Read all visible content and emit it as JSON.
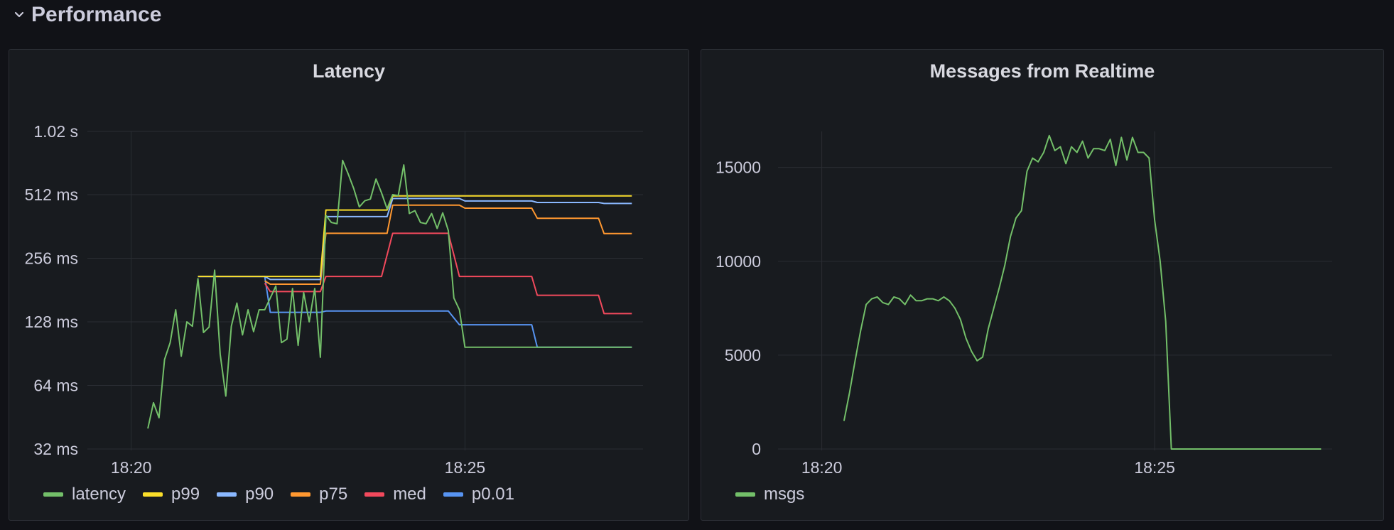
{
  "row": {
    "title": "Performance",
    "icon": "chevron-down-icon"
  },
  "chart_data": [
    {
      "type": "line",
      "title": "Latency",
      "yscale": "log2",
      "y_ticks": [
        {
          "value": 0.032,
          "label": "32 ms"
        },
        {
          "value": 0.064,
          "label": "64 ms"
        },
        {
          "value": 0.128,
          "label": "128 ms"
        },
        {
          "value": 0.256,
          "label": "256 ms"
        },
        {
          "value": 0.512,
          "label": "512 ms"
        },
        {
          "value": 1.02,
          "label": "1.02 s"
        }
      ],
      "x_ticks": [
        {
          "value": "18:20",
          "label": "18:20"
        },
        {
          "value": "18:25",
          "label": "18:25"
        }
      ],
      "x_range": [
        "18:19:50",
        "18:27:40"
      ],
      "grid": true,
      "legend": "bottom",
      "series": [
        {
          "name": "latency",
          "color": "#73bf69",
          "points": [
            [
              "18:20:15",
              0.04
            ],
            [
              "18:20:20",
              0.053
            ],
            [
              "18:20:25",
              0.045
            ],
            [
              "18:20:30",
              0.085
            ],
            [
              "18:20:35",
              0.102
            ],
            [
              "18:20:40",
              0.146
            ],
            [
              "18:20:45",
              0.088
            ],
            [
              "18:20:50",
              0.128
            ],
            [
              "18:20:55",
              0.122
            ],
            [
              "18:21:00",
              0.205
            ],
            [
              "18:21:05",
              0.114
            ],
            [
              "18:21:10",
              0.121
            ],
            [
              "18:21:15",
              0.225
            ],
            [
              "18:21:20",
              0.09
            ],
            [
              "18:21:25",
              0.057
            ],
            [
              "18:21:30",
              0.122
            ],
            [
              "18:21:35",
              0.157
            ],
            [
              "18:21:40",
              0.111
            ],
            [
              "18:21:45",
              0.146
            ],
            [
              "18:21:50",
              0.115
            ],
            [
              "18:21:55",
              0.146
            ],
            [
              "18:22:00",
              0.146
            ],
            [
              "18:22:05",
              0.166
            ],
            [
              "18:22:10",
              0.189
            ],
            [
              "18:22:15",
              0.102
            ],
            [
              "18:22:20",
              0.106
            ],
            [
              "18:22:25",
              0.184
            ],
            [
              "18:22:30",
              0.099
            ],
            [
              "18:22:35",
              0.176
            ],
            [
              "18:22:40",
              0.128
            ],
            [
              "18:22:45",
              0.184
            ],
            [
              "18:22:50",
              0.087
            ],
            [
              "18:22:55",
              0.408
            ],
            [
              "18:23:00",
              0.378
            ],
            [
              "18:23:05",
              0.373
            ],
            [
              "18:23:10",
              0.744
            ],
            [
              "18:23:15",
              0.643
            ],
            [
              "18:23:20",
              0.547
            ],
            [
              "18:23:25",
              0.448
            ],
            [
              "18:23:30",
              0.479
            ],
            [
              "18:23:35",
              0.488
            ],
            [
              "18:23:40",
              0.607
            ],
            [
              "18:23:45",
              0.522
            ],
            [
              "18:23:50",
              0.439
            ],
            [
              "18:23:55",
              0.512
            ],
            [
              "18:24:00",
              0.507
            ],
            [
              "18:24:05",
              0.708
            ],
            [
              "18:24:10",
              0.417
            ],
            [
              "18:24:15",
              0.43
            ],
            [
              "18:24:20",
              0.378
            ],
            [
              "18:24:25",
              0.373
            ],
            [
              "18:24:30",
              0.417
            ],
            [
              "18:24:35",
              0.354
            ],
            [
              "18:24:40",
              0.42
            ],
            [
              "18:24:45",
              0.346
            ],
            [
              "18:24:50",
              0.166
            ],
            [
              "18:24:55",
              0.146
            ],
            [
              "18:25:00",
              0.097
            ],
            [
              "18:27:30",
              0.097
            ]
          ]
        },
        {
          "name": "p99",
          "color": "#fade2a",
          "points": [
            [
              "18:21:00",
              0.21
            ],
            [
              "18:22:00",
              0.21
            ],
            [
              "18:22:50",
              0.21
            ],
            [
              "18:22:55",
              0.433
            ],
            [
              "18:23:50",
              0.433
            ],
            [
              "18:23:55",
              0.505
            ],
            [
              "18:27:30",
              0.505
            ]
          ]
        },
        {
          "name": "p90",
          "color": "#8ab8ff",
          "points": [
            [
              "18:21:00",
              0.21
            ],
            [
              "18:22:00",
              0.21
            ],
            [
              "18:22:05",
              0.203
            ],
            [
              "18:22:50",
              0.203
            ],
            [
              "18:22:55",
              0.403
            ],
            [
              "18:23:50",
              0.403
            ],
            [
              "18:23:55",
              0.491
            ],
            [
              "18:24:55",
              0.491
            ],
            [
              "18:25:00",
              0.478
            ],
            [
              "18:26:00",
              0.478
            ],
            [
              "18:26:05",
              0.47
            ],
            [
              "18:27:00",
              0.47
            ],
            [
              "18:27:05",
              0.465
            ],
            [
              "18:27:30",
              0.465
            ]
          ]
        },
        {
          "name": "p75",
          "color": "#ff9830",
          "points": [
            [
              "18:22:00",
              0.2
            ],
            [
              "18:22:05",
              0.193
            ],
            [
              "18:22:50",
              0.193
            ],
            [
              "18:22:55",
              0.336
            ],
            [
              "18:23:50",
              0.336
            ],
            [
              "18:23:55",
              0.457
            ],
            [
              "18:24:55",
              0.457
            ],
            [
              "18:25:00",
              0.442
            ],
            [
              "18:26:00",
              0.442
            ],
            [
              "18:26:05",
              0.396
            ],
            [
              "18:27:00",
              0.396
            ],
            [
              "18:27:05",
              0.335
            ],
            [
              "18:27:30",
              0.335
            ]
          ]
        },
        {
          "name": "med",
          "color": "#f2495c",
          "points": [
            [
              "18:22:00",
              0.195
            ],
            [
              "18:22:05",
              0.178
            ],
            [
              "18:22:50",
              0.178
            ],
            [
              "18:22:55",
              0.21
            ],
            [
              "18:23:45",
              0.21
            ],
            [
              "18:23:55",
              0.336
            ],
            [
              "18:24:45",
              0.336
            ],
            [
              "18:24:55",
              0.21
            ],
            [
              "18:26:00",
              0.21
            ],
            [
              "18:26:05",
              0.171
            ],
            [
              "18:27:00",
              0.171
            ],
            [
              "18:27:05",
              0.14
            ],
            [
              "18:27:30",
              0.14
            ]
          ]
        },
        {
          "name": "p0.01",
          "color": "#5794f2",
          "points": [
            [
              "18:21:00",
              0.21
            ],
            [
              "18:22:00",
              0.21
            ],
            [
              "18:22:05",
              0.142
            ],
            [
              "18:22:50",
              0.142
            ],
            [
              "18:22:55",
              0.144
            ],
            [
              "18:24:45",
              0.144
            ],
            [
              "18:24:55",
              0.124
            ],
            [
              "18:26:00",
              0.124
            ],
            [
              "18:26:05",
              0.097
            ],
            [
              "18:27:30",
              0.097
            ]
          ]
        }
      ]
    },
    {
      "type": "line",
      "title": "Messages from Realtime",
      "yscale": "linear",
      "ylim": [
        0,
        19000
      ],
      "y_ticks": [
        {
          "value": 0,
          "label": "0"
        },
        {
          "value": 5000,
          "label": "5000"
        },
        {
          "value": 10000,
          "label": "10000"
        },
        {
          "value": 15000,
          "label": "15000"
        }
      ],
      "x_ticks": [
        {
          "value": "18:20",
          "label": "18:20"
        },
        {
          "value": "18:25",
          "label": "18:25"
        }
      ],
      "x_range": [
        "18:19:50",
        "18:27:40"
      ],
      "grid": true,
      "legend": "bottom",
      "series": [
        {
          "name": "msgs",
          "color": "#73bf69",
          "points": [
            [
              "18:20:20",
              1500
            ],
            [
              "18:20:25",
              3000
            ],
            [
              "18:20:30",
              4700
            ],
            [
              "18:20:35",
              6300
            ],
            [
              "18:20:40",
              7700
            ],
            [
              "18:20:45",
              8000
            ],
            [
              "18:20:50",
              8100
            ],
            [
              "18:20:55",
              7800
            ],
            [
              "18:21:00",
              7700
            ],
            [
              "18:21:05",
              8100
            ],
            [
              "18:21:10",
              8000
            ],
            [
              "18:21:15",
              7700
            ],
            [
              "18:21:20",
              8200
            ],
            [
              "18:21:25",
              7900
            ],
            [
              "18:21:30",
              7900
            ],
            [
              "18:21:35",
              8000
            ],
            [
              "18:21:40",
              8000
            ],
            [
              "18:21:45",
              7900
            ],
            [
              "18:21:50",
              8100
            ],
            [
              "18:21:55",
              7900
            ],
            [
              "18:22:00",
              7500
            ],
            [
              "18:22:05",
              6900
            ],
            [
              "18:22:10",
              5900
            ],
            [
              "18:22:15",
              5200
            ],
            [
              "18:22:20",
              4700
            ],
            [
              "18:22:25",
              4900
            ],
            [
              "18:22:30",
              6400
            ],
            [
              "18:22:35",
              7500
            ],
            [
              "18:22:40",
              8600
            ],
            [
              "18:22:45",
              9800
            ],
            [
              "18:22:50",
              11300
            ],
            [
              "18:22:55",
              12300
            ],
            [
              "18:23:00",
              12700
            ],
            [
              "18:23:05",
              14800
            ],
            [
              "18:23:10",
              15500
            ],
            [
              "18:23:15",
              15300
            ],
            [
              "18:23:20",
              15800
            ],
            [
              "18:23:25",
              16700
            ],
            [
              "18:23:30",
              15900
            ],
            [
              "18:23:35",
              16100
            ],
            [
              "18:23:40",
              15200
            ],
            [
              "18:23:45",
              16100
            ],
            [
              "18:23:50",
              15800
            ],
            [
              "18:23:55",
              16400
            ],
            [
              "18:24:00",
              15500
            ],
            [
              "18:24:05",
              16000
            ],
            [
              "18:24:10",
              16000
            ],
            [
              "18:24:15",
              15900
            ],
            [
              "18:24:20",
              16500
            ],
            [
              "18:24:25",
              15100
            ],
            [
              "18:24:30",
              16600
            ],
            [
              "18:24:35",
              15400
            ],
            [
              "18:24:40",
              16600
            ],
            [
              "18:24:45",
              15800
            ],
            [
              "18:24:50",
              15800
            ],
            [
              "18:24:55",
              15500
            ],
            [
              "18:25:00",
              12200
            ],
            [
              "18:25:05",
              10000
            ],
            [
              "18:25:10",
              6800
            ],
            [
              "18:25:15",
              0
            ],
            [
              "18:27:30",
              0
            ]
          ]
        }
      ]
    }
  ]
}
